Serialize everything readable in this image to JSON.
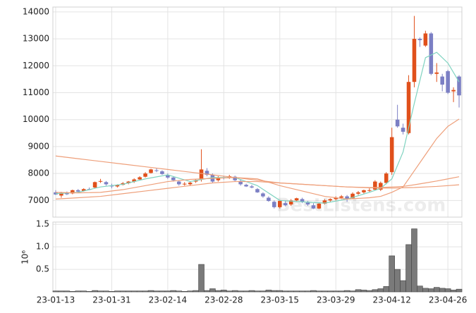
{
  "chart_data": [
    {
      "type": "candlestick",
      "categories": [
        "23-01-13",
        null,
        null,
        null,
        null,
        null,
        null,
        null,
        null,
        null,
        "23-01-31",
        null,
        null,
        null,
        null,
        null,
        null,
        null,
        null,
        null,
        "23-02-14",
        null,
        null,
        null,
        null,
        null,
        null,
        null,
        null,
        null,
        "23-02-28",
        null,
        null,
        null,
        null,
        null,
        null,
        null,
        null,
        null,
        "23-03-15",
        null,
        null,
        null,
        null,
        null,
        null,
        null,
        null,
        null,
        "23-03-29",
        null,
        null,
        null,
        null,
        null,
        null,
        null,
        null,
        null,
        "23-04-12",
        null,
        null,
        null,
        null,
        null,
        null,
        null,
        null,
        null,
        "23-04-26",
        null,
        null
      ],
      "open": [
        7300,
        7180,
        7280,
        7260,
        7380,
        7350,
        7420,
        7480,
        7700,
        7680,
        7560,
        7520,
        7580,
        7640,
        7700,
        7780,
        7880,
        8020,
        8120,
        8080,
        7950,
        7850,
        7700,
        7600,
        7600,
        7700,
        7780,
        8100,
        7950,
        7750,
        7850,
        7850,
        7880,
        7720,
        7580,
        7520,
        7420,
        7260,
        7100,
        6950,
        6750,
        6900,
        6850,
        7000,
        7050,
        6920,
        6820,
        6700,
        6880,
        7000,
        7050,
        7100,
        7150,
        7080,
        7250,
        7300,
        7380,
        7400,
        7400,
        7650,
        8050,
        10000,
        9700,
        9500,
        11400,
        13000,
        12750,
        13200,
        11700,
        11600,
        11800,
        11050,
        11600
      ],
      "high": [
        7380,
        7320,
        7330,
        7400,
        7420,
        7450,
        7480,
        7700,
        7800,
        7720,
        7620,
        7600,
        7680,
        7720,
        7820,
        7900,
        8050,
        8180,
        8200,
        8120,
        8000,
        7900,
        7750,
        7680,
        7700,
        7800,
        8900,
        8200,
        8000,
        7900,
        7900,
        7950,
        7920,
        7780,
        7620,
        7580,
        7460,
        7300,
        7150,
        7000,
        7020,
        6980,
        7050,
        7100,
        7100,
        6980,
        6900,
        6900,
        7050,
        7080,
        7150,
        7200,
        7200,
        7300,
        7350,
        7400,
        7450,
        7750,
        7700,
        8050,
        9700,
        10550,
        9850,
        11650,
        13850,
        13050,
        13300,
        13250,
        12100,
        11700,
        11850,
        11200,
        11650
      ],
      "low": [
        7200,
        7100,
        7200,
        7230,
        7300,
        7330,
        7380,
        7450,
        7650,
        7550,
        7450,
        7480,
        7560,
        7600,
        7650,
        7750,
        7850,
        8000,
        8050,
        7950,
        7800,
        7700,
        7550,
        7550,
        7550,
        7650,
        7700,
        7900,
        7650,
        7700,
        7780,
        7800,
        7700,
        7550,
        7500,
        7450,
        7280,
        7100,
        6950,
        6700,
        6700,
        6780,
        6800,
        6950,
        6900,
        6800,
        6680,
        6680,
        6850,
        6950,
        7000,
        7050,
        6950,
        7050,
        7200,
        7250,
        7320,
        7380,
        7350,
        7600,
        7950,
        9700,
        9450,
        9450,
        11200,
        12700,
        12700,
        11650,
        11400,
        11050,
        10950,
        10650,
        10450
      ],
      "close": [
        7220,
        7280,
        7230,
        7380,
        7330,
        7420,
        7400,
        7680,
        7720,
        7600,
        7520,
        7580,
        7640,
        7700,
        7780,
        7860,
        8000,
        8150,
        8100,
        7980,
        7850,
        7750,
        7600,
        7620,
        7660,
        7750,
        8150,
        7950,
        7700,
        7850,
        7820,
        7900,
        7750,
        7600,
        7520,
        7480,
        7300,
        7150,
        6980,
        6750,
        6980,
        6820,
        7000,
        7080,
        6950,
        6850,
        6700,
        6880,
        7000,
        7050,
        7100,
        7150,
        7050,
        7250,
        7300,
        7380,
        7380,
        7700,
        7650,
        8000,
        9350,
        9750,
        9550,
        11400,
        13000,
        12950,
        13200,
        11700,
        11750,
        11300,
        11000,
        11100,
        10900
      ],
      "up_color": "#e0501b",
      "down_color": "#7b7fc4",
      "lines": [
        {
          "color": "#7fd3c0",
          "x": [
            0,
            4,
            8,
            12,
            16,
            20,
            24,
            28,
            32,
            36,
            40,
            44,
            48,
            52,
            56,
            58,
            60,
            62,
            64,
            66,
            68,
            70,
            72
          ],
          "values": [
            7250,
            7300,
            7500,
            7600,
            7800,
            7950,
            7700,
            7850,
            7850,
            7550,
            7000,
            6950,
            6900,
            7050,
            7300,
            7450,
            7800,
            8800,
            10600,
            12300,
            12500,
            12100,
            11400
          ]
        },
        {
          "color": "#ee9f7a",
          "x": [
            0,
            4,
            8,
            12,
            16,
            20,
            24,
            28,
            32,
            36,
            40,
            44,
            48,
            52,
            56,
            58,
            60,
            62,
            64,
            66,
            68,
            70,
            72
          ],
          "values": [
            7300,
            7280,
            7300,
            7400,
            7550,
            7700,
            7780,
            7820,
            7850,
            7800,
            7550,
            7350,
            7150,
            7050,
            7100,
            7150,
            7300,
            7500,
            8100,
            8700,
            9300,
            9750,
            10020
          ]
        },
        {
          "color": "#ee9f7a",
          "x": [
            0,
            4,
            8,
            12,
            16,
            20,
            24,
            28,
            32,
            36,
            40,
            44,
            48,
            52,
            56,
            58,
            60,
            62,
            64,
            66,
            68,
            70,
            72
          ],
          "values": [
            7050,
            7100,
            7150,
            7250,
            7350,
            7450,
            7550,
            7650,
            7700,
            7700,
            7650,
            7600,
            7550,
            7500,
            7480,
            7480,
            7500,
            7520,
            7580,
            7650,
            7720,
            7800,
            7880
          ]
        },
        {
          "color": "#ee9f7a",
          "x": [
            0,
            4,
            8,
            12,
            16,
            20,
            24,
            28,
            32,
            36,
            40,
            44,
            48,
            52,
            56,
            58,
            60,
            62,
            64,
            66,
            68,
            70,
            72
          ],
          "values": [
            8650,
            8550,
            8450,
            8350,
            8250,
            8150,
            8050,
            7950,
            7850,
            7750,
            7650,
            7600,
            7550,
            7500,
            7470,
            7460,
            7460,
            7470,
            7480,
            7500,
            7520,
            7550,
            7580
          ]
        }
      ],
      "ylim": [
        6380,
        14180
      ],
      "yticks": [
        7000,
        8000,
        9000,
        10000,
        11000,
        12000,
        13000,
        14000
      ],
      "grid": true,
      "watermark": "BestListens.com"
    },
    {
      "type": "bar",
      "ylabel": "10⁶",
      "color": "#7a7a7a",
      "values": [
        0.02,
        0.02,
        0.02,
        0.01,
        0.02,
        0.02,
        0.01,
        0.03,
        0.02,
        0.02,
        0.01,
        0.02,
        0.02,
        0.02,
        0.02,
        0.02,
        0.02,
        0.03,
        0.02,
        0.02,
        0.02,
        0.03,
        0.02,
        0.01,
        0.02,
        0.03,
        0.61,
        0.03,
        0.07,
        0.03,
        0.04,
        0.02,
        0.03,
        0.02,
        0.02,
        0.03,
        0.02,
        0.02,
        0.04,
        0.03,
        0.03,
        0.02,
        0.02,
        0.02,
        0.02,
        0.02,
        0.03,
        0.02,
        0.02,
        0.02,
        0.02,
        0.02,
        0.03,
        0.02,
        0.05,
        0.04,
        0.03,
        0.05,
        0.07,
        0.12,
        0.8,
        0.5,
        0.25,
        1.05,
        1.4,
        0.13,
        0.08,
        0.07,
        0.1,
        0.08,
        0.07,
        0.04,
        0.06
      ],
      "ylim": [
        0,
        1.55
      ],
      "yticks": [
        0.5,
        {
          "value": 1,
          "label": "1.0"
        },
        1.5
      ],
      "grid": true
    }
  ]
}
